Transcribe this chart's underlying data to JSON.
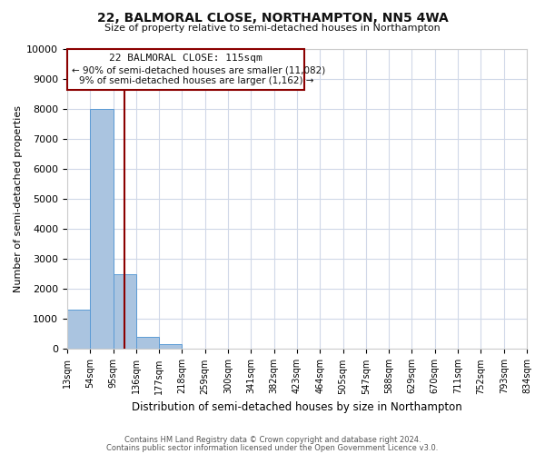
{
  "title": "22, BALMORAL CLOSE, NORTHAMPTON, NN5 4WA",
  "subtitle": "Size of property relative to semi-detached houses in Northampton",
  "xlabel": "Distribution of semi-detached houses by size in Northampton",
  "ylabel": "Number of semi-detached properties",
  "bar_values": [
    1300,
    8000,
    2500,
    400,
    150,
    0,
    0,
    0,
    0,
    0,
    0,
    0,
    0,
    0,
    0,
    0,
    0,
    0,
    0,
    0
  ],
  "bar_labels": [
    "13sqm",
    "54sqm",
    "95sqm",
    "136sqm",
    "177sqm",
    "218sqm",
    "259sqm",
    "300sqm",
    "341sqm",
    "382sqm",
    "423sqm",
    "464sqm",
    "505sqm",
    "547sqm",
    "588sqm",
    "629sqm",
    "670sqm",
    "711sqm",
    "752sqm",
    "793sqm",
    "834sqm"
  ],
  "bar_color": "#aac4e0",
  "bar_edge_color": "#5b9bd5",
  "vline_color": "#8b0000",
  "annotation_title": "22 BALMORAL CLOSE: 115sqm",
  "annotation_line1": "← 90% of semi-detached houses are smaller (11,082)",
  "annotation_line2": "9% of semi-detached houses are larger (1,162) →",
  "annotation_box_color": "#8b0000",
  "ylim": [
    0,
    10000
  ],
  "yticks": [
    0,
    1000,
    2000,
    3000,
    4000,
    5000,
    6000,
    7000,
    8000,
    9000,
    10000
  ],
  "footer1": "Contains HM Land Registry data © Crown copyright and database right 2024.",
  "footer2": "Contains public sector information licensed under the Open Government Licence v3.0.",
  "bg_color": "#ffffff",
  "grid_color": "#d0d8e8",
  "num_bars": 20,
  "vline_x": 2.49
}
